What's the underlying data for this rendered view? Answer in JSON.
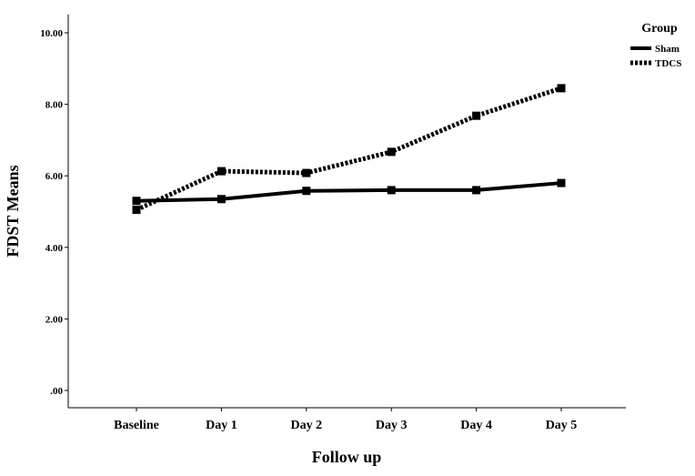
{
  "chart_data": {
    "type": "line",
    "categories": [
      "Baseline",
      "Day 1",
      "Day 2",
      "Day 3",
      "Day 4",
      "Day 5"
    ],
    "series": [
      {
        "name": "Sham",
        "values": [
          5.3,
          5.35,
          5.58,
          5.6,
          5.6,
          5.8
        ],
        "line_style": "solid",
        "color": "#000000"
      },
      {
        "name": "TDCS",
        "values": [
          5.05,
          6.13,
          6.08,
          6.67,
          7.68,
          8.45
        ],
        "line_style": "dotted",
        "color": "#000000"
      }
    ],
    "xlabel": "Follow up",
    "ylabel": "FDST Means",
    "ylim": [
      0,
      10
    ],
    "y_ticks": [
      0,
      2,
      4,
      6,
      8,
      10
    ],
    "y_tick_labels": [
      ".00",
      "2.00",
      "4.00",
      "6.00",
      "8.00",
      "10.00"
    ],
    "legend": {
      "title": "Group",
      "position": "top-right"
    },
    "grid": false,
    "marker": "square"
  }
}
